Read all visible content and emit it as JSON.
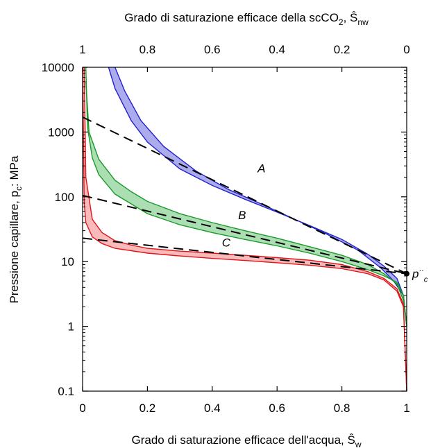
{
  "chart_data": {
    "type": "line",
    "title": "",
    "xlabel": "Grado di saturazione efficace dell'acqua, Ŝ",
    "xlabel_sub": "w",
    "x2label": "Grado di saturazione efficace della scCO",
    "x2label_sub1": "2",
    "x2label_mid": ", Ŝ",
    "x2label_sub2": "nw",
    "ylabel": "Pressione capillare, p",
    "ylabel_sub": "c",
    "ylabel_tail": ": MPa",
    "xlim": [
      0,
      1
    ],
    "ylim": [
      0.1,
      10000
    ],
    "y_scale": "log",
    "grid": false,
    "x_ticks": [
      0,
      0.2,
      0.4,
      0.6,
      0.8,
      1
    ],
    "x_tick_labels": [
      "0",
      "0.2",
      "0.4",
      "0.6",
      "0.8",
      "1"
    ],
    "x2_tick_labels": [
      "1",
      "0.8",
      "0.6",
      "0.4",
      "0.2",
      "0"
    ],
    "y_ticks": [
      0.1,
      1,
      10,
      100,
      1000,
      10000
    ],
    "y_tick_labels": [
      "0.1",
      "1",
      "10",
      "100",
      "1000",
      "10000"
    ],
    "series": [
      {
        "label": "A",
        "color": "#2222cc",
        "fill": "#8f8fe8",
        "upper": [
          [
            0.08,
            10000
          ],
          [
            0.1,
            4700
          ],
          [
            0.15,
            1500
          ],
          [
            0.2,
            700
          ],
          [
            0.3,
            270
          ],
          [
            0.4,
            150
          ],
          [
            0.5,
            92
          ],
          [
            0.6,
            58
          ],
          [
            0.7,
            36
          ],
          [
            0.8,
            22
          ],
          [
            0.88,
            13
          ],
          [
            0.93,
            8.5
          ],
          [
            0.97,
            5.5
          ],
          [
            0.99,
            3
          ],
          [
            1.0,
            1
          ]
        ],
        "lower": [
          [
            0.1,
            10000
          ],
          [
            0.13,
            4300
          ],
          [
            0.18,
            1500
          ],
          [
            0.25,
            600
          ],
          [
            0.35,
            250
          ],
          [
            0.45,
            130
          ],
          [
            0.55,
            78
          ],
          [
            0.65,
            46
          ],
          [
            0.75,
            27
          ],
          [
            0.85,
            15
          ],
          [
            0.92,
            8
          ],
          [
            0.96,
            5
          ],
          [
            0.99,
            3
          ],
          [
            1.0,
            1
          ]
        ],
        "label_position": [
          0.54,
          240
        ]
      },
      {
        "label": "B",
        "color": "#1a9a2a",
        "fill": "#8fd49a",
        "upper": [
          [
            0.01,
            10000
          ],
          [
            0.015,
            1200
          ],
          [
            0.03,
            400
          ],
          [
            0.05,
            220
          ],
          [
            0.1,
            110
          ],
          [
            0.2,
            55
          ],
          [
            0.3,
            37
          ],
          [
            0.4,
            28
          ],
          [
            0.5,
            22
          ],
          [
            0.6,
            17.5
          ],
          [
            0.7,
            13.5
          ],
          [
            0.8,
            10
          ],
          [
            0.88,
            7.5
          ],
          [
            0.93,
            6
          ],
          [
            0.97,
            4.8
          ],
          [
            0.99,
            3
          ],
          [
            1.0,
            1
          ]
        ],
        "lower": [
          [
            0.01,
            6000
          ],
          [
            0.02,
            1000
          ],
          [
            0.05,
            380
          ],
          [
            0.1,
            180
          ],
          [
            0.15,
            120
          ],
          [
            0.2,
            85
          ],
          [
            0.3,
            55
          ],
          [
            0.4,
            40
          ],
          [
            0.5,
            30
          ],
          [
            0.6,
            23
          ],
          [
            0.7,
            17
          ],
          [
            0.8,
            12.5
          ],
          [
            0.88,
            9
          ],
          [
            0.93,
            6.5
          ],
          [
            0.97,
            4.5
          ],
          [
            0.99,
            2.5
          ],
          [
            1.0,
            1
          ]
        ],
        "label_position": [
          0.48,
          45
        ]
      },
      {
        "label": "C",
        "color": "#e0141a",
        "fill": "#f5a3a3",
        "upper": [
          [
            0.0,
            10000
          ],
          [
            0.005,
            80
          ],
          [
            0.01,
            40
          ],
          [
            0.03,
            24
          ],
          [
            0.06,
            19
          ],
          [
            0.1,
            16
          ],
          [
            0.2,
            13.5
          ],
          [
            0.3,
            12.2
          ],
          [
            0.4,
            11.2
          ],
          [
            0.5,
            10.4
          ],
          [
            0.6,
            9.6
          ],
          [
            0.7,
            8.8
          ],
          [
            0.8,
            7.8
          ],
          [
            0.88,
            6.5
          ],
          [
            0.93,
            5.2
          ],
          [
            0.97,
            3.5
          ],
          [
            0.99,
            2
          ],
          [
            1.0,
            0.1
          ]
        ],
        "lower": [
          [
            0.005,
            10000
          ],
          [
            0.01,
            200
          ],
          [
            0.03,
            45
          ],
          [
            0.06,
            28
          ],
          [
            0.1,
            21
          ],
          [
            0.15,
            18
          ],
          [
            0.2,
            16
          ],
          [
            0.3,
            14.5
          ],
          [
            0.4,
            13.5
          ],
          [
            0.5,
            12.5
          ],
          [
            0.6,
            11.5
          ],
          [
            0.7,
            10.5
          ],
          [
            0.8,
            9
          ],
          [
            0.88,
            7
          ],
          [
            0.93,
            5.5
          ],
          [
            0.97,
            3.8
          ],
          [
            0.99,
            2.2
          ],
          [
            1.0,
            0.1
          ]
        ],
        "label_position": [
          0.43,
          17
        ]
      }
    ],
    "dashed_lines": [
      {
        "from": [
          0.0,
          1700
        ],
        "to": [
          1.0,
          6.5
        ]
      },
      {
        "from": [
          0.0,
          105
        ],
        "to": [
          1.0,
          6.5
        ]
      },
      {
        "from": [
          0.0,
          23
        ],
        "to": [
          1.0,
          6.5
        ]
      }
    ],
    "endpoint": {
      "x": 1.0,
      "y": 6.5
    },
    "endpoint_label": "p",
    "endpoint_sub": "c",
    "endpoint_sup": "··"
  }
}
